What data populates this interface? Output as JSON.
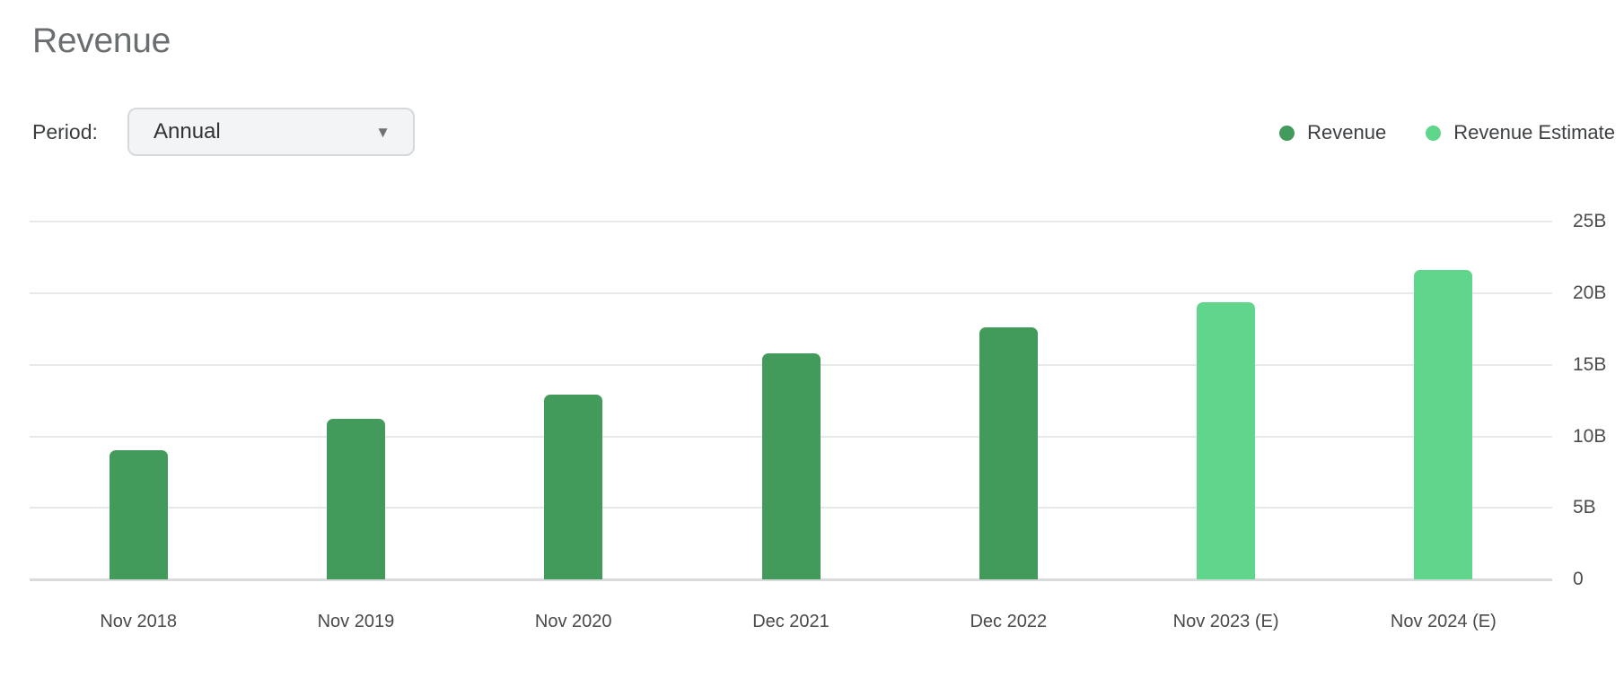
{
  "page": {
    "title": "Revenue"
  },
  "controls": {
    "period_label": "Period:",
    "period_value": "Annual",
    "dropdown_arrow": "▼"
  },
  "legend": {
    "items": [
      {
        "label": "Revenue",
        "color": "#429a5b"
      },
      {
        "label": "Revenue Estimate",
        "color": "#5fd68c"
      }
    ]
  },
  "chart_data": {
    "type": "bar",
    "title": "Revenue",
    "categories": [
      "Nov 2018",
      "Nov 2019",
      "Nov 2020",
      "Dec 2021",
      "Dec 2022",
      "Nov 2023 (E)",
      "Nov 2024 (E)"
    ],
    "series": [
      {
        "name": "Revenue",
        "color": "#429a5b",
        "values": [
          9.0,
          11.2,
          12.9,
          15.8,
          17.6,
          null,
          null
        ]
      },
      {
        "name": "Revenue Estimate",
        "color": "#5fd68c",
        "values": [
          null,
          null,
          null,
          null,
          null,
          19.4,
          21.6
        ]
      }
    ],
    "value_unit": "B",
    "ylim": [
      0,
      25
    ],
    "yticks": [
      {
        "value": 0,
        "label": "0"
      },
      {
        "value": 5,
        "label": "5B"
      },
      {
        "value": 10,
        "label": "10B"
      },
      {
        "value": 15,
        "label": "15B"
      },
      {
        "value": 20,
        "label": "20B"
      },
      {
        "value": 25,
        "label": "25B"
      }
    ],
    "grid": "horizontal",
    "yaxis_position": "right",
    "legend_position": "top-right"
  }
}
